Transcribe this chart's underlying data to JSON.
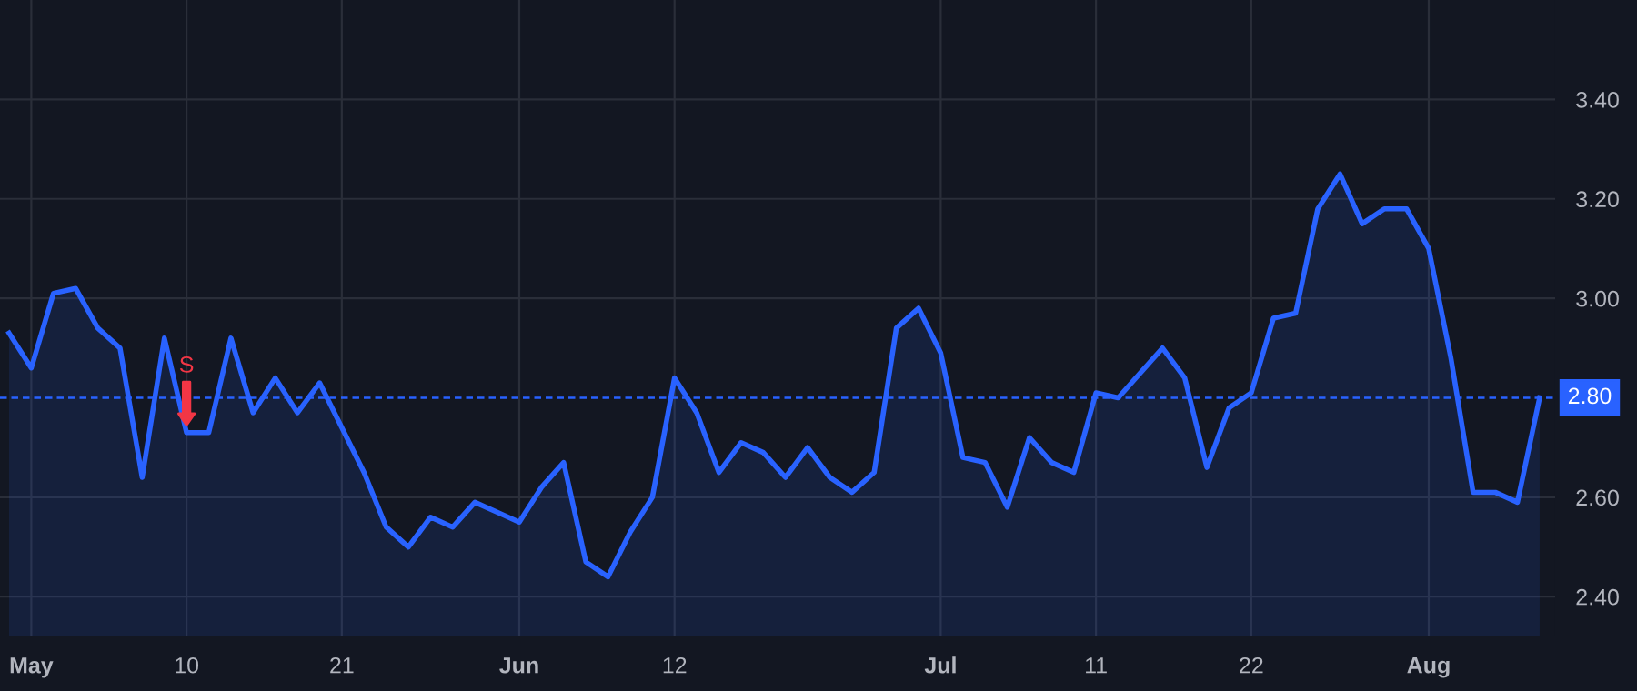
{
  "chart_data": {
    "type": "area",
    "categories": [
      null,
      "May",
      null,
      null,
      null,
      null,
      null,
      null,
      "10",
      null,
      null,
      null,
      null,
      null,
      null,
      "21",
      null,
      null,
      null,
      null,
      null,
      null,
      null,
      "Jun",
      null,
      null,
      null,
      null,
      null,
      null,
      "12",
      null,
      null,
      null,
      null,
      null,
      null,
      null,
      null,
      null,
      null,
      null,
      "Jul",
      null,
      null,
      null,
      null,
      null,
      null,
      "11",
      null,
      null,
      null,
      null,
      null,
      null,
      "22",
      null,
      null,
      null,
      null,
      null,
      null,
      null,
      "Aug",
      null,
      null,
      null,
      null,
      null
    ],
    "series": [
      {
        "color": "#2962ff",
        "values": [
          2.93,
          2.86,
          3.01,
          3.02,
          2.94,
          2.9,
          2.64,
          2.92,
          2.73,
          2.73,
          2.92,
          2.77,
          2.84,
          2.77,
          2.83,
          2.74,
          2.65,
          2.54,
          2.5,
          2.56,
          2.54,
          2.59,
          2.57,
          2.55,
          2.62,
          2.67,
          2.47,
          2.44,
          2.53,
          2.6,
          2.84,
          2.77,
          2.65,
          2.71,
          2.69,
          2.64,
          2.7,
          2.64,
          2.61,
          2.65,
          2.94,
          2.98,
          2.89,
          2.68,
          2.67,
          2.58,
          2.72,
          2.67,
          2.65,
          2.81,
          2.8,
          2.85,
          2.9,
          2.84,
          2.66,
          2.78,
          2.81,
          2.96,
          2.97,
          3.18,
          3.25,
          3.15,
          3.18,
          3.18,
          3.1,
          2.88,
          2.61,
          2.61,
          2.59,
          2.8
        ]
      }
    ],
    "ylim": [
      2.32,
      3.6
    ],
    "yticks": [
      {
        "value": 2.4,
        "label": "2.40"
      },
      {
        "value": 2.6,
        "label": "2.60"
      },
      {
        "value": 3.0,
        "label": "3.00"
      },
      {
        "value": 3.2,
        "label": "3.20"
      },
      {
        "value": 3.4,
        "label": "3.40"
      }
    ],
    "ref_lines": [
      {
        "axis": "y",
        "value": 2.8,
        "label": "2.80",
        "color": "#2962ff",
        "line_style": "dashed"
      }
    ],
    "annotations": [
      {
        "text": "S",
        "x": "10",
        "y": 2.73
      }
    ],
    "grid": true,
    "legend": false
  }
}
